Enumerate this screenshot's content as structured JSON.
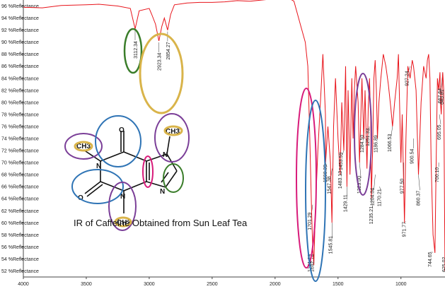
{
  "chart_data": {
    "type": "line",
    "title": "",
    "xlabel": "",
    "ylabel": "",
    "xlim": [
      4000,
      650
    ],
    "ylim": [
      51,
      97
    ],
    "x_ticks": [
      "4000",
      "3500",
      "3000",
      "2500",
      "2000",
      "1500",
      "1000"
    ],
    "y_ticks": [
      "96",
      "94",
      "92",
      "90",
      "88",
      "86",
      "84",
      "82",
      "80",
      "78",
      "76",
      "74",
      "72",
      "70",
      "68",
      "66",
      "64",
      "62",
      "60",
      "58",
      "56",
      "54",
      "52"
    ],
    "y_tick_suffix": " %Reflectance",
    "series": [
      {
        "color": "#e8141b",
        "x": [
          4000,
          3850,
          3700,
          3500,
          3400,
          3250,
          3150,
          3112,
          3080,
          3000,
          2980,
          2950,
          2923,
          2900,
          2880,
          2854,
          2830,
          2800,
          2700,
          2600,
          2500,
          2400,
          2300,
          2200,
          2100,
          2000,
          1900,
          1850,
          1800,
          1760,
          1740,
          1725,
          1710,
          1701,
          1692,
          1680,
          1660,
          1640,
          1620,
          1600,
          1599,
          1580,
          1560,
          1548,
          1535,
          1520,
          1500,
          1483,
          1470,
          1454,
          1440,
          1429,
          1420,
          1405,
          1390,
          1380,
          1370,
          1360,
          1340,
          1329,
          1310,
          1295,
          1285,
          1270,
          1260,
          1250,
          1240,
          1235,
          1225,
          1215,
          1205,
          1195,
          1187,
          1175,
          1160,
          1140,
          1120,
          1100,
          1080,
          1067,
          1050,
          1030,
          1020,
          1000,
          990,
          972,
          960,
          945,
          927,
          910,
          900,
          880,
          861,
          850,
          840,
          820,
          800,
          790,
          780,
          770,
          760,
          745,
          730,
          720,
          710,
          700,
          690,
          686,
          680,
          670,
          668,
          660,
          650
        ],
        "y": [
          95.8,
          95.7,
          96.1,
          96.2,
          96.3,
          96.0,
          95.6,
          92.2,
          95.2,
          95.6,
          94.6,
          93.0,
          90.2,
          92.6,
          94.0,
          92.0,
          94.6,
          96.2,
          96.5,
          96.6,
          96.6,
          96.7,
          96.9,
          96.8,
          97.0,
          97.2,
          97.4,
          96.8,
          93.0,
          90.0,
          86.0,
          75.0,
          62.0,
          56.0,
          53.0,
          62.0,
          72.0,
          80.0,
          88.0,
          78.0,
          70.0,
          76.0,
          70.0,
          60.0,
          76.0,
          84.0,
          74.0,
          68.0,
          80.0,
          72.0,
          86.0,
          66.0,
          82.0,
          68.0,
          84.0,
          74.0,
          82.0,
          86.0,
          80.0,
          70.0,
          84.0,
          74.0,
          82.0,
          69.0,
          79.0,
          84.0,
          77.0,
          64.0,
          72.0,
          84.0,
          87.0,
          82.0,
          74.0,
          80.0,
          84.0,
          88.0,
          86.0,
          83.0,
          79.0,
          76.0,
          80.0,
          84.0,
          88.0,
          70.0,
          78.0,
          60.0,
          74.0,
          86.0,
          84.0,
          87.0,
          86.0,
          82.0,
          68.0,
          74.0,
          80.0,
          86.0,
          84.0,
          87.0,
          88.0,
          84.0,
          70.0,
          58.0,
          55.0,
          70.0,
          84.0,
          82.0,
          85.0,
          80.0,
          78.0,
          84.0,
          85.0,
          82.0,
          52.0
        ]
      }
    ],
    "peak_labels": [
      {
        "text": "3112.34",
        "x": 3112,
        "y": 92.2
      },
      {
        "text": "2923.34",
        "x": 2923,
        "y": 90.2
      },
      {
        "text": "2854.27",
        "x": 2854,
        "y": 92.0
      },
      {
        "text": "1701.29",
        "x": 1701,
        "y": 56
      },
      {
        "text": "1692.74",
        "x": 1692,
        "y": 53
      },
      {
        "text": "1598.39",
        "x": 1599,
        "y": 70
      },
      {
        "text": "1547.38",
        "x": 1547,
        "y": 69
      },
      {
        "text": "1545.81",
        "x": 1546,
        "y": 60
      },
      {
        "text": "1483.13",
        "x": 1483,
        "y": 68
      },
      {
        "text": "1453.59",
        "x": 1454,
        "y": 72
      },
      {
        "text": "1429.11",
        "x": 1429,
        "y": 66
      },
      {
        "text": "1329.00",
        "x": 1329,
        "y": 70
      },
      {
        "text": "1284.50",
        "x": 1285,
        "y": 74
      },
      {
        "text": "1251.33",
        "x": 1252,
        "y": 76
      },
      {
        "text": "1235.21",
        "x": 1235,
        "y": 64
      },
      {
        "text": "1204.04",
        "x": 1204,
        "y": 68
      },
      {
        "text": "1186.89",
        "x": 1187,
        "y": 74
      },
      {
        "text": "1170.21",
        "x": 1170,
        "y": 66
      },
      {
        "text": "1066.53",
        "x": 1067,
        "y": 76
      },
      {
        "text": "977.50",
        "x": 978,
        "y": 70
      },
      {
        "text": "971.77",
        "x": 972,
        "y": 60
      },
      {
        "text": "927.24",
        "x": 927,
        "y": 86
      },
      {
        "text": "900.54",
        "x": 900,
        "y": 74
      },
      {
        "text": "860.37",
        "x": 861,
        "y": 68
      },
      {
        "text": "744.65",
        "x": 745,
        "y": 55
      },
      {
        "text": "700.10",
        "x": 700,
        "y": 70
      },
      {
        "text": "695.05",
        "x": 695,
        "y": 78
      },
      {
        "text": "667.64",
        "x": 668,
        "y": 85
      },
      {
        "text": "643.81",
        "x": 660,
        "y": 82
      },
      {
        "text": "625.02",
        "x": 655,
        "y": 52
      },
      {
        "text": "1701.29",
        "x": 1701,
        "y": 63
      }
    ],
    "annotation": "IR of Caffeine Obtained from Sun Leaf Tea",
    "molecule_labels": [
      "O",
      "O",
      "N",
      "N",
      "N",
      "N",
      "CH3",
      "CH3",
      "CH3"
    ]
  }
}
